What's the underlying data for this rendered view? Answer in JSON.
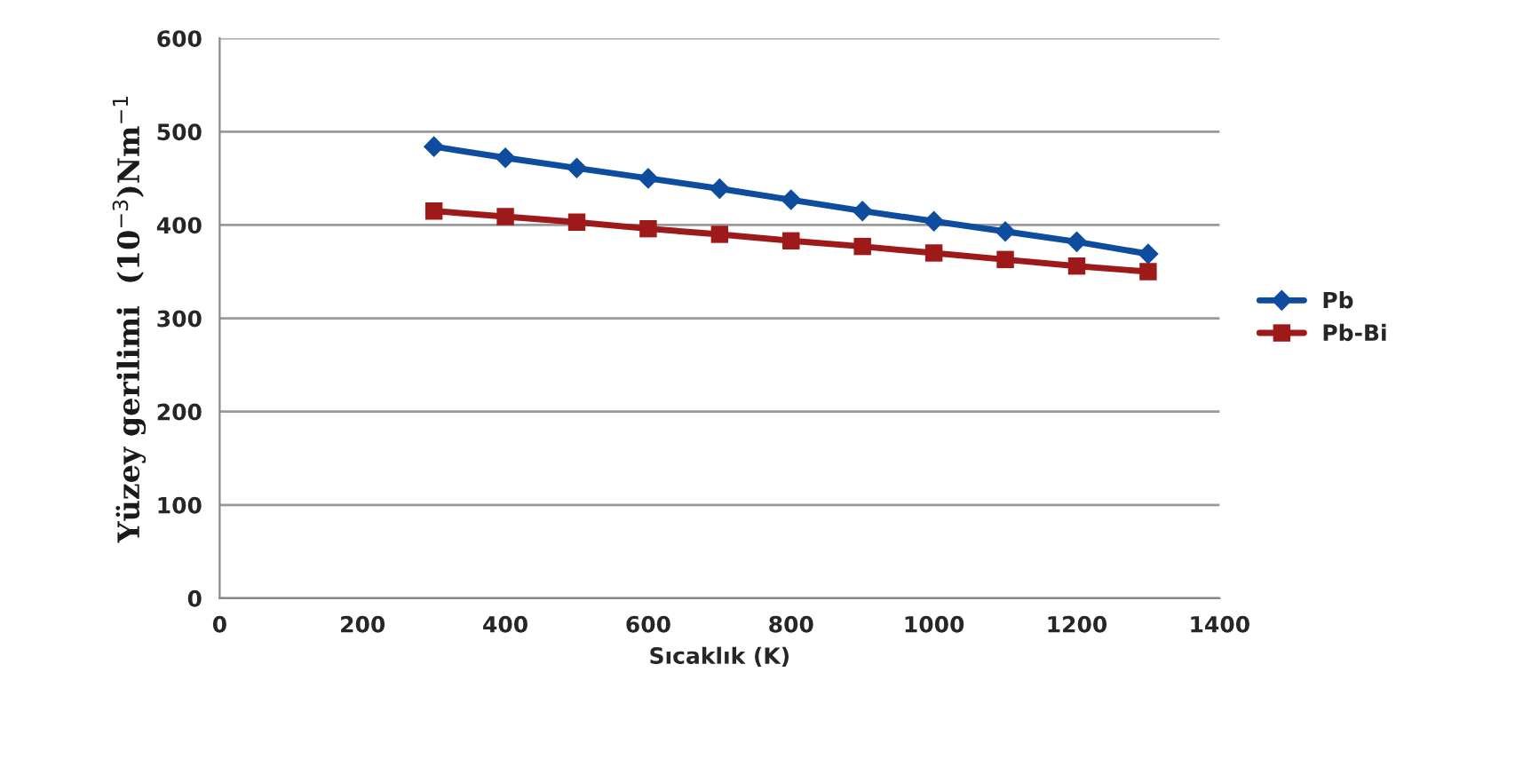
{
  "chart_data": {
    "type": "line",
    "xlabel": "Sıcaklık (K)",
    "ylabel": "Yüzey gerilimi  (10$^{−3}$)Nm$^{−1}$",
    "x": [
      300,
      400,
      500,
      600,
      700,
      800,
      900,
      1000,
      1100,
      1200,
      1300
    ],
    "series": [
      {
        "name": "Pb",
        "color": "#0e4c9e",
        "marker": "diamond",
        "values": [
          484,
          472,
          461,
          450,
          439,
          427,
          415,
          404,
          393,
          382,
          369
        ]
      },
      {
        "name": "Pb-Bi",
        "color": "#9e1a1a",
        "marker": "square",
        "values": [
          415,
          409,
          403,
          396,
          390,
          383,
          377,
          370,
          363,
          356,
          350
        ]
      }
    ],
    "xlim": [
      0,
      1400
    ],
    "xticks": [
      0,
      200,
      400,
      600,
      800,
      1000,
      1200,
      1400
    ],
    "ylim": [
      0,
      600
    ],
    "yticks": [
      0,
      100,
      200,
      300,
      400,
      500,
      600
    ],
    "grid": "y",
    "legend": "right"
  }
}
